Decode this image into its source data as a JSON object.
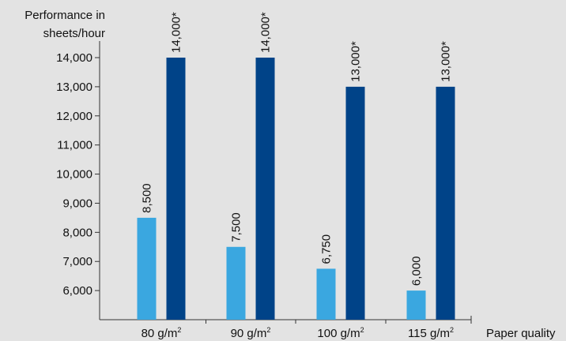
{
  "chart_data": {
    "type": "bar",
    "ylabel_lines": [
      "Performance in",
      "sheets/hour"
    ],
    "xlabel": "Paper quality",
    "categories": [
      {
        "value": "80 g/m",
        "sup": "2"
      },
      {
        "value": "90 g/m",
        "sup": "2"
      },
      {
        "value": "100 g/m",
        "sup": "2"
      },
      {
        "value": "115 g/m",
        "sup": "2"
      }
    ],
    "series": [
      {
        "color": "#3aa7e0",
        "values": [
          8500,
          7500,
          6750,
          6000
        ],
        "labels": [
          "8,500",
          "7,500",
          "6,750",
          "6,000"
        ]
      },
      {
        "color": "#004388",
        "values": [
          14000,
          14000,
          13000,
          13000
        ],
        "labels": [
          "14,000*",
          "14,000*",
          "13,000*",
          "13,000*"
        ]
      }
    ],
    "y_ticks": [
      {
        "value": 6000,
        "label": "6,000"
      },
      {
        "value": 7000,
        "label": "7,000"
      },
      {
        "value": 8000,
        "label": "8,000"
      },
      {
        "value": 9000,
        "label": "9,000"
      },
      {
        "value": 10000,
        "label": "10,000"
      },
      {
        "value": 11000,
        "label": "11,000"
      },
      {
        "value": 12000,
        "label": "12,000"
      },
      {
        "value": 13000,
        "label": "13,000"
      },
      {
        "value": 14000,
        "label": "14,000"
      }
    ],
    "ylim": [
      5000,
      14000
    ],
    "grid": false,
    "legend": "none",
    "axis_color": "#333333"
  }
}
